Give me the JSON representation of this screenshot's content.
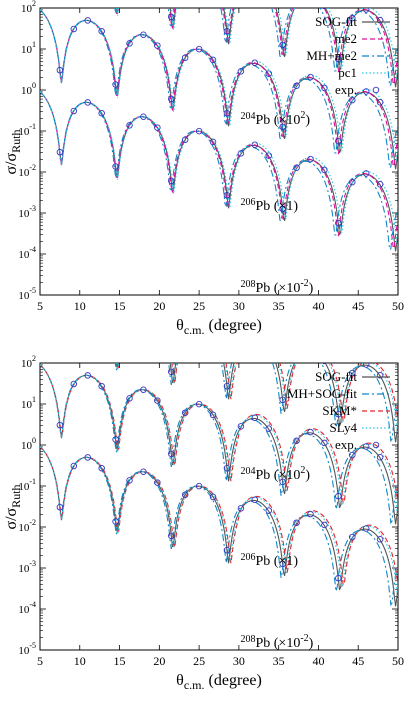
{
  "chart_data": [
    {
      "type": "line",
      "xlabel": "θc.m. (degree)",
      "xlabel_main": "θ",
      "xlabel_sub": "c.m.",
      "xlabel_unit": " (degree)",
      "ylabel_main": "σ/σ",
      "ylabel_sub": "Ruth",
      "xlim": [
        5,
        50
      ],
      "ylim": [
        1e-05,
        100
      ],
      "yscale": "log",
      "xticks": [
        5,
        10,
        15,
        20,
        25,
        30,
        35,
        40,
        45,
        50
      ],
      "yticks": [
        {
          "value": 1e-05,
          "base": "10",
          "exp": "-5"
        },
        {
          "value": 0.0001,
          "base": "10",
          "exp": "-4"
        },
        {
          "value": 0.001,
          "base": "10",
          "exp": "-3"
        },
        {
          "value": 0.01,
          "base": "10",
          "exp": "-2"
        },
        {
          "value": 0.1,
          "base": "10",
          "exp": "-1"
        },
        {
          "value": 1,
          "base": "10",
          "exp": "0"
        },
        {
          "value": 10,
          "base": "10",
          "exp": "1"
        },
        {
          "value": 100,
          "base": "10",
          "exp": "2"
        }
      ],
      "legend_position": "top-right",
      "series": [
        {
          "name": "SOG-fit",
          "color": "#555555",
          "dash": "solid",
          "shift": 0,
          "scale": 1.0
        },
        {
          "name": "me2",
          "color": "#e0119b",
          "dash": "dash",
          "shift": 0.25,
          "scale": 1.04
        },
        {
          "name": "MH+me2",
          "color": "#0f88c8",
          "dash": "dashdot",
          "shift": 0.7,
          "scale": 0.92
        },
        {
          "name": "pc1",
          "color": "#22c8e6",
          "dash": "dot",
          "shift": -0.25,
          "scale": 1.15
        }
      ],
      "exp_label": "exp.",
      "exp_color": "#3636c0",
      "panels": [
        {
          "label_pre": "",
          "label_mass": "204",
          "label_el": "Pb",
          "label_factor_pre": " (×10",
          "label_factor_exp": "2",
          "label_factor_post": ")",
          "label_x": 30.2,
          "label_y": 0.15,
          "decade_offset": 2
        },
        {
          "label_pre": "",
          "label_mass": "206",
          "label_el": "Pb",
          "label_factor_pre": " (×1)",
          "label_factor_exp": "",
          "label_factor_post": "",
          "label_x": 30.2,
          "label_y": 0.0012,
          "decade_offset": 0
        },
        {
          "label_pre": "",
          "label_mass": "208",
          "label_el": "Pb",
          "label_factor_pre": " (×10",
          "label_factor_exp": "-2",
          "label_factor_post": ")",
          "label_x": 30.2,
          "label_y": 1.2e-05,
          "decade_offset": -2
        }
      ]
    },
    {
      "type": "line",
      "xlabel": "θc.m. (degree)",
      "xlabel_main": "θ",
      "xlabel_sub": "c.m.",
      "xlabel_unit": " (degree)",
      "ylabel_main": "σ/σ",
      "ylabel_sub": "Ruth",
      "xlim": [
        5,
        50
      ],
      "ylim": [
        1e-05,
        100
      ],
      "yscale": "log",
      "xticks": [
        5,
        10,
        15,
        20,
        25,
        30,
        35,
        40,
        45,
        50
      ],
      "yticks": [
        {
          "value": 1e-05,
          "base": "10",
          "exp": "-5"
        },
        {
          "value": 0.0001,
          "base": "10",
          "exp": "-4"
        },
        {
          "value": 0.001,
          "base": "10",
          "exp": "-3"
        },
        {
          "value": 0.01,
          "base": "10",
          "exp": "-2"
        },
        {
          "value": 0.1,
          "base": "10",
          "exp": "-1"
        },
        {
          "value": 1,
          "base": "10",
          "exp": "0"
        },
        {
          "value": 10,
          "base": "10",
          "exp": "1"
        },
        {
          "value": 100,
          "base": "10",
          "exp": "2"
        }
      ],
      "legend_position": "top-right",
      "series": [
        {
          "name": "SOG-fit",
          "color": "#555555",
          "dash": "solid",
          "shift": 0,
          "scale": 1.0
        },
        {
          "name": "MH+SOG-fit",
          "color": "#0f88c8",
          "dash": "dashdot",
          "shift": 0.55,
          "scale": 0.94
        },
        {
          "name": "SKM*",
          "color": "#e3262f",
          "dash": "dash",
          "shift": -0.55,
          "scale": 1.25
        },
        {
          "name": "SLy4",
          "color": "#22c8e6",
          "dash": "dot",
          "shift": -0.35,
          "scale": 1.18
        }
      ],
      "exp_label": "exp.",
      "exp_color": "#3636c0",
      "panels": [
        {
          "label_pre": "",
          "label_mass": "204",
          "label_el": "Pb",
          "label_factor_pre": " (×10",
          "label_factor_exp": "2",
          "label_factor_post": ")",
          "label_x": 30.2,
          "label_y": 0.15,
          "decade_offset": 2
        },
        {
          "label_pre": "",
          "label_mass": "206",
          "label_el": "Pb",
          "label_factor_pre": " (×1)",
          "label_factor_exp": "",
          "label_factor_post": "",
          "label_x": 30.2,
          "label_y": 0.0012,
          "decade_offset": 0
        },
        {
          "label_pre": "",
          "label_mass": "208",
          "label_el": "Pb",
          "label_factor_pre": " (×10",
          "label_factor_exp": "-2",
          "label_factor_post": ")",
          "label_x": 30.2,
          "label_y": 1.2e-05,
          "decade_offset": -2
        }
      ]
    }
  ]
}
